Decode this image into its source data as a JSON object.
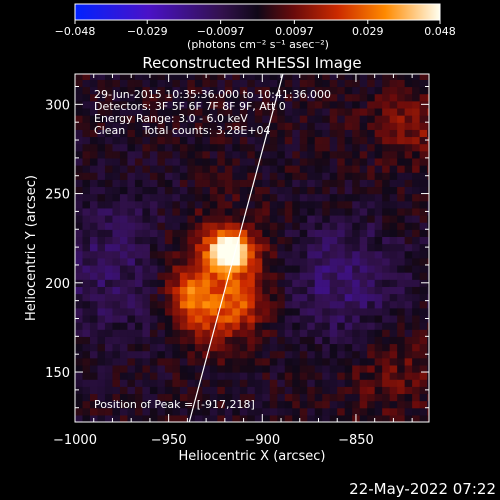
{
  "chart_data": {
    "type": "heatmap",
    "title": "Reconstructed RHESSI Image",
    "xlabel": "Heliocentric X (arcsec)",
    "ylabel": "Heliocentric Y (arcsec)",
    "xlim": [
      -1000,
      -811
    ],
    "ylim": [
      122,
      317
    ],
    "x_ticks": [
      {
        "value": -1000,
        "label": "−1000"
      },
      {
        "value": -950,
        "label": "−950"
      },
      {
        "value": -900,
        "label": "−900"
      },
      {
        "value": -850,
        "label": "−850"
      }
    ],
    "y_ticks": [
      {
        "value": 150,
        "label": "150"
      },
      {
        "value": 200,
        "label": "200"
      },
      {
        "value": 250,
        "label": "250"
      },
      {
        "value": 300,
        "label": "300"
      }
    ],
    "colorbar": {
      "range": [
        -0.048,
        0.048
      ],
      "ticks": [
        {
          "value": -0.048,
          "label": "−0.048"
        },
        {
          "value": -0.029,
          "label": "−0.029"
        },
        {
          "value": -0.0097,
          "label": "−0.0097"
        },
        {
          "value": 0.0097,
          "label": "0.0097"
        },
        {
          "value": 0.029,
          "label": "0.029"
        },
        {
          "value": 0.048,
          "label": "0.048"
        }
      ],
      "unit_label": "(photons cm⁻² s⁻¹ asec⁻²)"
    },
    "info_lines": [
      "29-Jun-2015 10:35:36.000 to 10:41:36.000",
      "Detectors: 3F 5F 6F 7F 8F 9F, Att 0",
      "Energy Range: 3.0 - 6.0 keV",
      "Clean     Total counts: 3.28E+04"
    ],
    "peak_label": "Position of Peak = [-917,218]",
    "peak": [
      -917,
      218
    ],
    "limb_line": [
      [
        -939,
        122
      ],
      [
        -889,
        317
      ]
    ],
    "sources": [
      {
        "x": -917,
        "y": 218,
        "amp": 0.046,
        "sigma": 8
      },
      {
        "x": -925,
        "y": 205,
        "amp": 0.022,
        "sigma": 22
      },
      {
        "x": -938,
        "y": 193,
        "amp": 0.02,
        "sigma": 7
      },
      {
        "x": -912,
        "y": 187,
        "amp": 0.014,
        "sigma": 9
      },
      {
        "x": -930,
        "y": 178,
        "amp": 0.01,
        "sigma": 11
      }
    ]
  },
  "footer": {
    "date": "22-May-2022 07:22"
  }
}
